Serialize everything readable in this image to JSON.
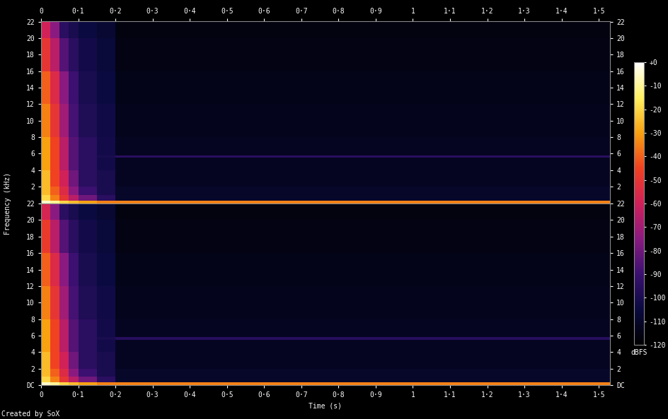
{
  "chart_data": {
    "type": "heatmap",
    "xlabel": "Time (s)",
    "ylabel": "Frequency (kHz)",
    "footer": "Created by SoX",
    "xlim": [
      0,
      1.53
    ],
    "xticks": [
      0,
      {
        "value": 0.1,
        "label": "0·1"
      },
      {
        "value": 0.2,
        "label": "0·2"
      },
      {
        "value": 0.3,
        "label": "0·3"
      },
      {
        "value": 0.4,
        "label": "0·4"
      },
      {
        "value": 0.5,
        "label": "0·5"
      },
      {
        "value": 0.6,
        "label": "0·6"
      },
      {
        "value": 0.7,
        "label": "0·7"
      },
      {
        "value": 0.8,
        "label": "0·8"
      },
      {
        "value": 0.9,
        "label": "0·9"
      },
      1,
      {
        "value": 1.1,
        "label": "1·1"
      },
      {
        "value": 1.2,
        "label": "1·2"
      },
      {
        "value": 1.3,
        "label": "1·3"
      },
      {
        "value": 1.4,
        "label": "1·4"
      },
      {
        "value": 1.5,
        "label": "1·5"
      }
    ],
    "time_edges": [
      0,
      0.025,
      0.05,
      0.075,
      0.1,
      0.15,
      0.2,
      1.53
    ],
    "frequency_edges": [
      0,
      0.3,
      1,
      2,
      4,
      5.5,
      5.8,
      8,
      12,
      16,
      20,
      22.05
    ],
    "colorbar": {
      "label": "dBFS",
      "range": [
        -120,
        0
      ],
      "ticks": [
        -120,
        -110,
        -100,
        -90,
        -80,
        -70,
        -60,
        -50,
        -40,
        -30,
        -20,
        -10,
        {
          "value": 0,
          "label": "+0"
        }
      ]
    },
    "channels": [
      {
        "ylim": [
          0,
          22.05
        ],
        "yticks": [
          2,
          4,
          6,
          8,
          10,
          12,
          14,
          16,
          18,
          20,
          22
        ],
        "cells": [
          [
            -5,
            -10,
            -20,
            -25,
            -30,
            -35,
            -35
          ],
          [
            -20,
            -35,
            -50,
            -65,
            -80,
            -95,
            -110
          ],
          [
            -25,
            -40,
            -55,
            -75,
            -90,
            -100,
            -110
          ],
          [
            -25,
            -45,
            -60,
            -80,
            -95,
            -100,
            -112
          ],
          [
            -30,
            -45,
            -65,
            -85,
            -95,
            -102,
            -112
          ],
          [
            -30,
            -45,
            -65,
            -85,
            -95,
            -100,
            -95
          ],
          [
            -30,
            -45,
            -65,
            -85,
            -95,
            -102,
            -112
          ],
          [
            -35,
            -50,
            -70,
            -88,
            -98,
            -103,
            -113
          ],
          [
            -40,
            -55,
            -75,
            -90,
            -100,
            -105,
            -114
          ],
          [
            -50,
            -65,
            -85,
            -95,
            -102,
            -106,
            -115
          ],
          [
            -60,
            -75,
            -95,
            -100,
            -105,
            -108,
            -116
          ]
        ]
      },
      {
        "ylim": [
          0,
          22.05
        ],
        "yticks": [
          {
            "value": 0,
            "label": "DC"
          },
          2,
          4,
          6,
          8,
          10,
          12,
          14,
          16,
          18,
          20,
          22
        ],
        "cells": [
          [
            -5,
            -10,
            -20,
            -25,
            -30,
            -35,
            -35
          ],
          [
            -20,
            -35,
            -50,
            -65,
            -80,
            -95,
            -110
          ],
          [
            -25,
            -40,
            -55,
            -75,
            -90,
            -100,
            -110
          ],
          [
            -25,
            -45,
            -60,
            -80,
            -95,
            -100,
            -112
          ],
          [
            -30,
            -45,
            -65,
            -85,
            -95,
            -102,
            -112
          ],
          [
            -30,
            -45,
            -65,
            -85,
            -95,
            -100,
            -96
          ],
          [
            -30,
            -45,
            -65,
            -85,
            -95,
            -102,
            -112
          ],
          [
            -35,
            -50,
            -70,
            -88,
            -98,
            -103,
            -113
          ],
          [
            -40,
            -55,
            -75,
            -90,
            -100,
            -105,
            -114
          ],
          [
            -48,
            -65,
            -85,
            -95,
            -102,
            -106,
            -115
          ],
          [
            -58,
            -75,
            -95,
            -100,
            -105,
            -108,
            -116
          ]
        ]
      }
    ]
  }
}
